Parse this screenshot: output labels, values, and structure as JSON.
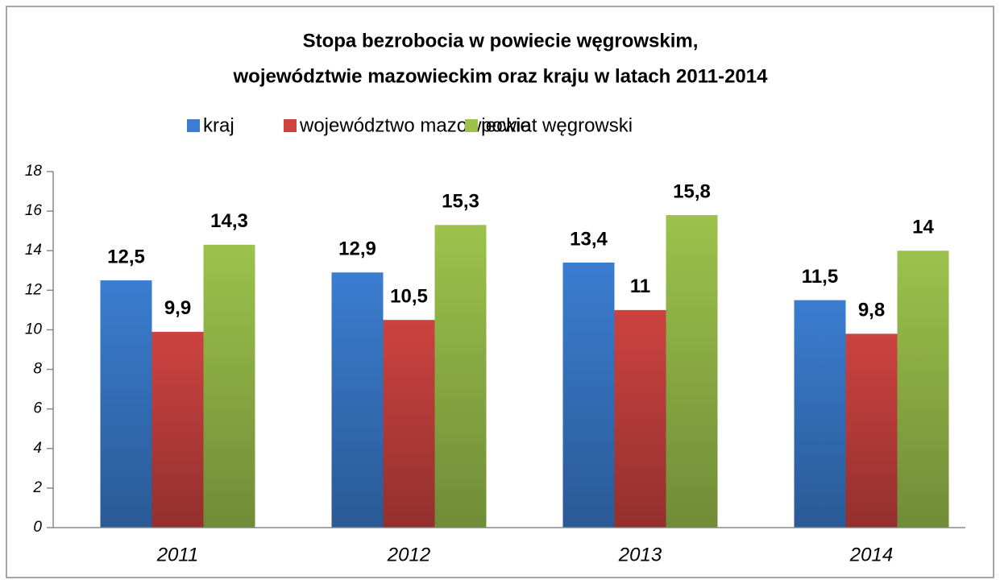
{
  "chart_data": {
    "type": "bar",
    "title": [
      "Stopa bezrobocia w powiecie węgrowskim,",
      "województwie mazowieckim oraz kraju w latach 2011-2014"
    ],
    "categories": [
      "2011",
      "2012",
      "2013",
      "2014"
    ],
    "series": [
      {
        "name": "kraj",
        "color": "#3b7dd0",
        "values": [
          12.5,
          12.9,
          13.4,
          11.5
        ],
        "value_labels": [
          "12,5",
          "12,9",
          "13,4",
          "11,5"
        ]
      },
      {
        "name": "województwo mazowieckie",
        "color": "#cc4340",
        "values": [
          9.9,
          10.5,
          11,
          9.8
        ],
        "value_labels": [
          "9,9",
          "10,5",
          "11",
          "9,8"
        ]
      },
      {
        "name": "powiat węgrowski",
        "color": "#9cc24c",
        "values": [
          14.3,
          15.3,
          15.8,
          14
        ],
        "value_labels": [
          "14,3",
          "15,3",
          "15,8",
          "14"
        ]
      }
    ],
    "ylim": [
      0,
      18
    ],
    "yticks": [
      0,
      2,
      4,
      6,
      8,
      10,
      12,
      14,
      16,
      18
    ],
    "grid": false,
    "legend": "top"
  }
}
